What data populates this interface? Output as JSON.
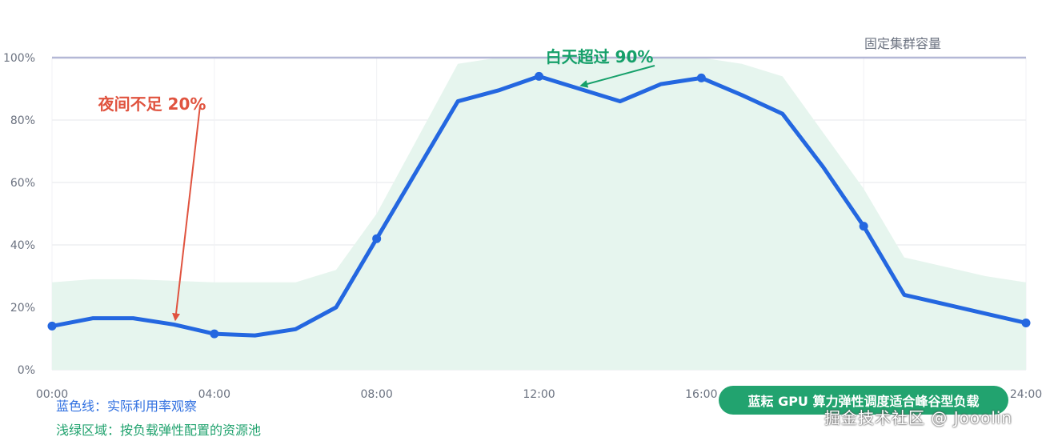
{
  "chart_data": {
    "type": "line",
    "x": [
      "00:00",
      "01:00",
      "02:00",
      "03:00",
      "04:00",
      "05:00",
      "06:00",
      "07:00",
      "08:00",
      "09:00",
      "10:00",
      "11:00",
      "12:00",
      "13:00",
      "14:00",
      "15:00",
      "16:00",
      "17:00",
      "18:00",
      "19:00",
      "20:00",
      "21:00",
      "22:00",
      "23:00",
      "24:00"
    ],
    "x_ticks": [
      "00:00",
      "04:00",
      "08:00",
      "12:00",
      "16:00",
      "20:00",
      "24:00"
    ],
    "y_ticks": [
      "0%",
      "20%",
      "40%",
      "60%",
      "80%",
      "100%"
    ],
    "ylim": [
      0,
      100
    ],
    "grid": true,
    "series": [
      {
        "name": "蓝色线：实际利用率观察",
        "type": "line",
        "color": "#2467e0",
        "values": [
          14,
          16.5,
          16.5,
          14.5,
          11.5,
          11,
          13,
          20,
          42,
          64,
          86,
          89.5,
          94,
          90,
          86,
          91.5,
          93.5,
          88,
          82,
          65,
          46,
          24,
          21,
          18,
          15
        ],
        "marker_hours": [
          0,
          4,
          8,
          12,
          16,
          20,
          24
        ]
      },
      {
        "name": "浅绿区域：按负载弹性配置的资源池",
        "type": "area",
        "color": "#e6f5ee",
        "values": [
          28,
          29,
          29,
          28.5,
          28,
          28,
          28,
          32,
          50,
          74,
          98,
          100,
          100,
          100,
          100,
          100,
          100,
          98,
          94,
          76,
          58,
          36,
          33,
          30,
          28
        ]
      }
    ],
    "reference_line": {
      "label": "固定集群容量",
      "value": 100,
      "color": "#b4b8d6"
    },
    "annotations": [
      {
        "text": "夜间不足 20%",
        "color": "#e0533f",
        "point_hour": 3,
        "point_value": 14.5
      },
      {
        "text": "白天超过 90%",
        "color": "#16a06a",
        "point_hour": 13,
        "point_value": 90
      }
    ],
    "callout": "蓝耘 GPU 算力弹性调度适合峰谷型负载"
  },
  "colors": {
    "grid": "#e5e7eb",
    "axis_text": "#6b7280",
    "badge_bg": "#22a36f"
  },
  "watermark": "掘金技术社区 @ Jooolin"
}
